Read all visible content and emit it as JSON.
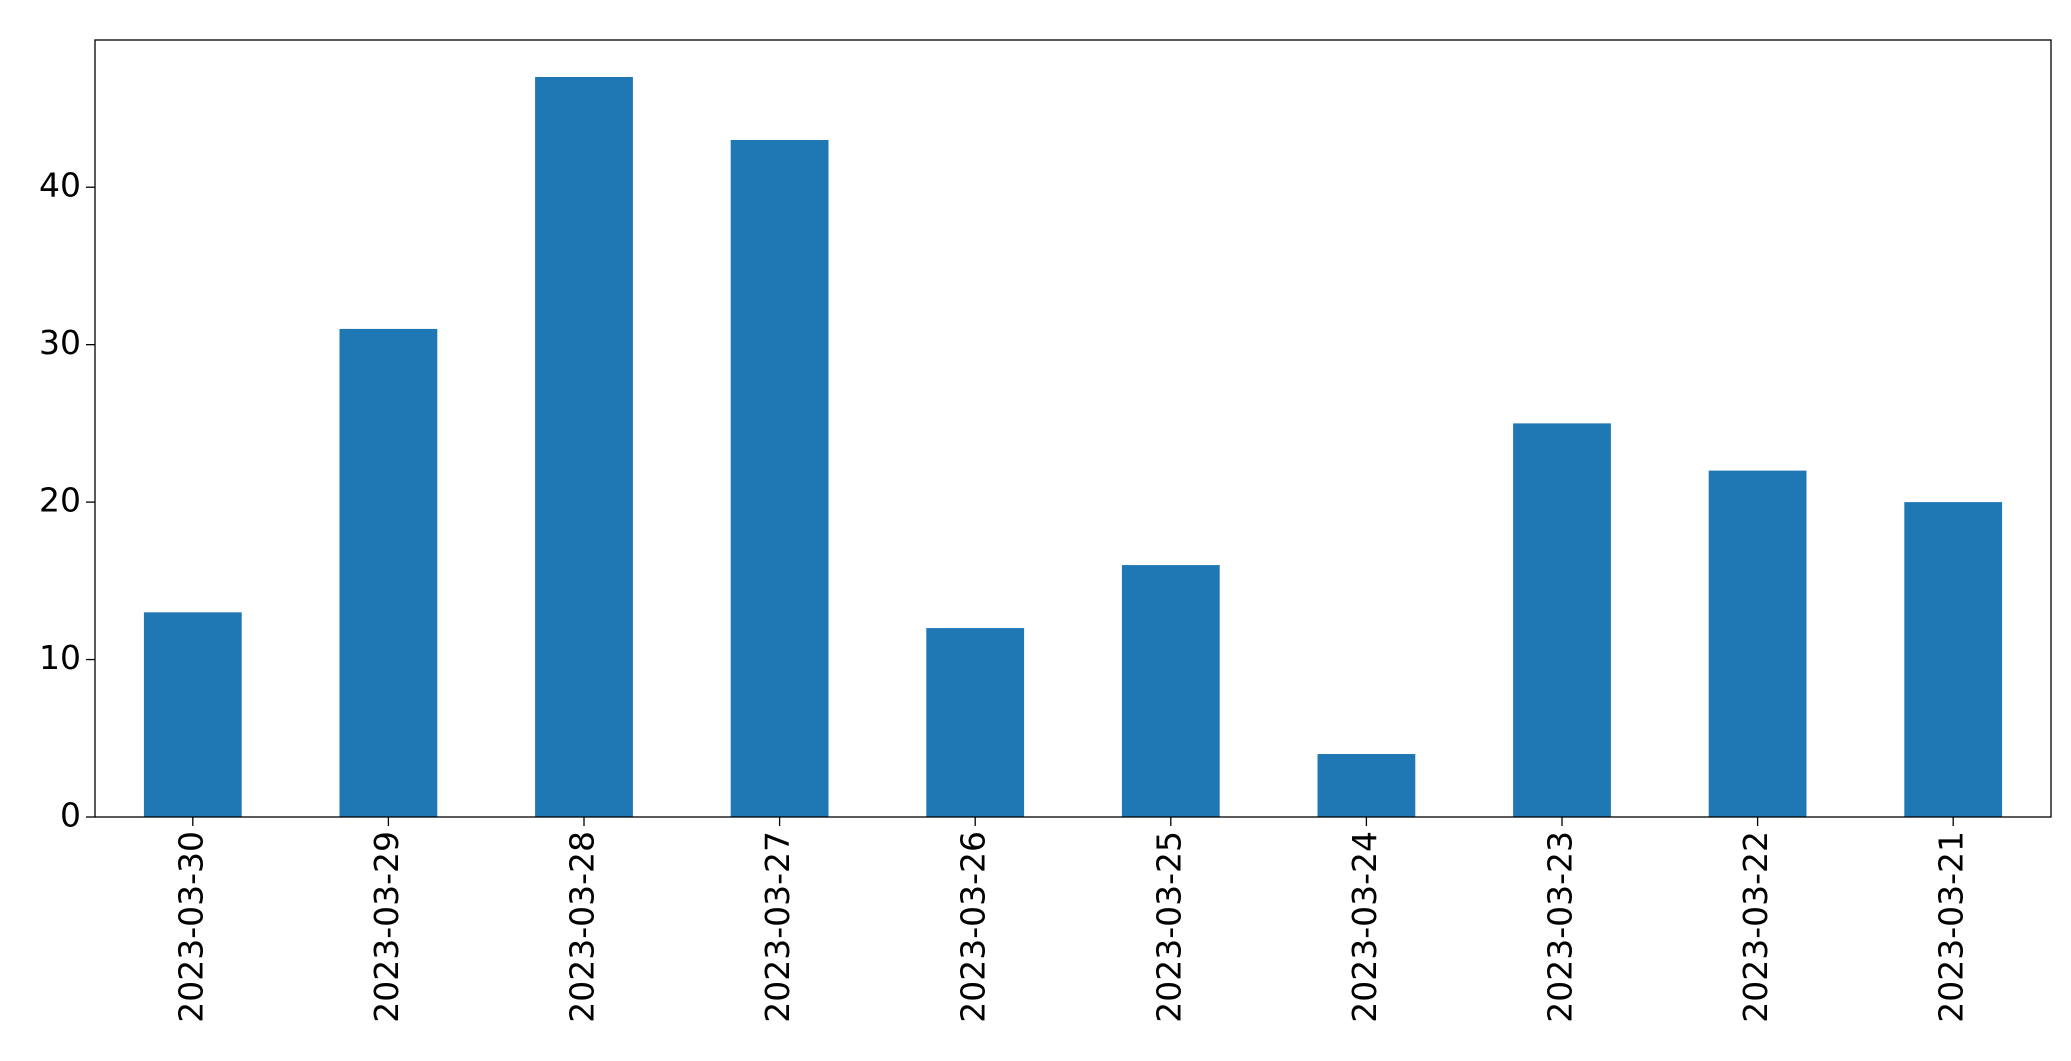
{
  "chart_data": {
    "type": "bar",
    "categories": [
      "2023-03-30",
      "2023-03-29",
      "2023-03-28",
      "2023-03-27",
      "2023-03-26",
      "2023-03-25",
      "2023-03-24",
      "2023-03-23",
      "2023-03-22",
      "2023-03-21"
    ],
    "values": [
      13,
      31,
      47,
      43,
      12,
      16,
      4,
      25,
      22,
      20
    ],
    "color": "#1f77b4",
    "ylim": [
      0,
      49.35
    ],
    "yticks": [
      0,
      10,
      20,
      30,
      40
    ],
    "grid": false
  }
}
